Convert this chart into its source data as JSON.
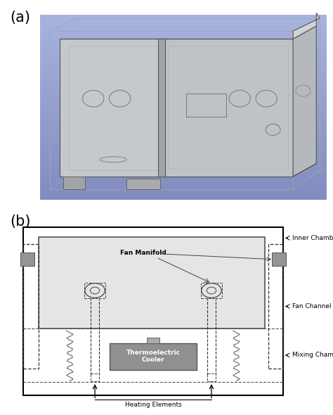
{
  "panel_a_label": "(a)",
  "panel_b_label": "(b)",
  "label_fontsize": 15,
  "annotation_fontsize": 6.5,
  "bg_color": "#ffffff",
  "tec_label": "Thermoelectric\nCooler",
  "fan_manifold_label": "Fan Manifold",
  "inner_chamber_label": "Inner Chamber",
  "fan_channel_label": "Fan Channel",
  "mixing_chamber_label": "Mixing Chamber",
  "heating_elements_label": "Heating Elements",
  "grad_left": "#8fa8bb",
  "grad_right": "#c8d4dc",
  "inner_chamber_fc": "#e8e8e8",
  "panel_face_l": "#c4c8cc",
  "panel_face_r": "#c0c4c8",
  "top_face": "#d4d8dc",
  "right_face": "#b8bcC0",
  "bottom_face": "#b0b4b8",
  "edge_color": "#555555",
  "dashed_color": "#888888",
  "fan_gray": "#888888",
  "tec_gray": "#909090",
  "coil_color": "#777777"
}
